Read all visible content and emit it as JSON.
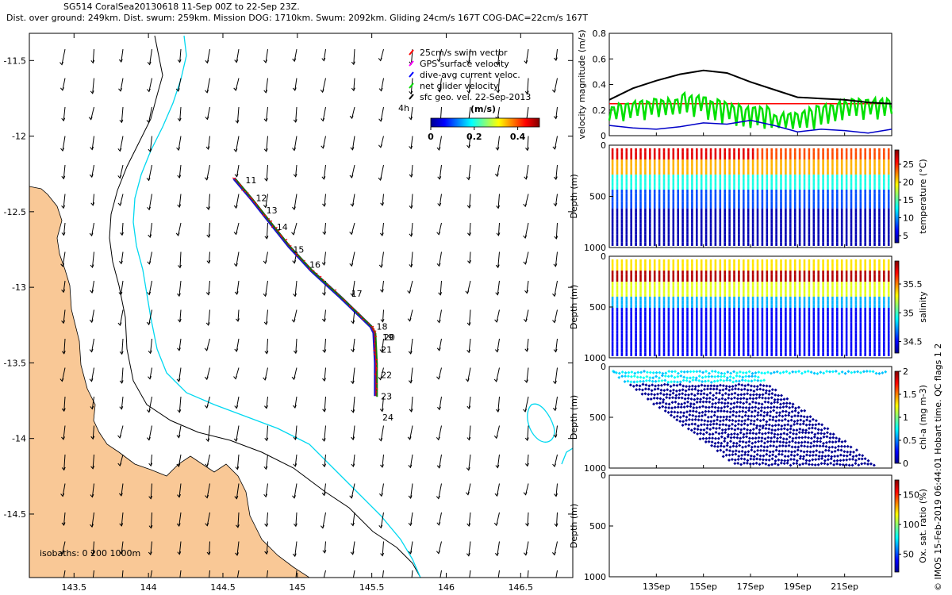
{
  "header": {
    "line1": "SG514 CoralSea20130618 11-Sep 00Z to 22-Sep 23Z.",
    "line2": "Dist. over ground: 249km. Dist. swum: 259km. Mission DOG: 1710km. Swum: 2092km. Gliding 24cm/s 167T COG-DAC=22cm/s 167T"
  },
  "map": {
    "x_ticks": [
      "143.5",
      "144",
      "144.5",
      "145",
      "145.5",
      "146",
      "146.5"
    ],
    "x_values": [
      143.5,
      144,
      144.5,
      145,
      145.5,
      146,
      146.5
    ],
    "y_ticks": [
      "-11.5",
      "-12",
      "-12.5",
      "-13",
      "-13.5",
      "-14",
      "-14.5"
    ],
    "y_values": [
      -11.5,
      -12,
      -12.5,
      -13,
      -13.5,
      -14,
      -14.5
    ],
    "xlim": [
      143.2,
      146.85
    ],
    "ylim": [
      -14.92,
      -11.32
    ],
    "isobath_label": "isobaths: 0   200  1000m",
    "land_color": "#f9c896",
    "isobath_200_color": "#000000",
    "isobath_1000_color": "#00d8f0",
    "track_colors": [
      "#0000c8",
      "#ff0000",
      "#008000"
    ],
    "day_labels": [
      {
        "t": "11",
        "lon": 144.63,
        "lat": -12.29
      },
      {
        "t": "12",
        "lon": 144.7,
        "lat": -12.41
      },
      {
        "t": "13",
        "lon": 144.77,
        "lat": -12.49
      },
      {
        "t": "14",
        "lon": 144.84,
        "lat": -12.6
      },
      {
        "t": "15",
        "lon": 144.95,
        "lat": -12.75
      },
      {
        "t": "16",
        "lon": 145.06,
        "lat": -12.85
      },
      {
        "t": "17",
        "lon": 145.34,
        "lat": -13.04
      },
      {
        "t": "18",
        "lon": 145.51,
        "lat": -13.26
      },
      {
        "t": "19",
        "lon": 145.55,
        "lat": -13.33
      },
      {
        "t": "20",
        "lon": 145.56,
        "lat": -13.33
      },
      {
        "t": "21",
        "lon": 145.54,
        "lat": -13.41
      },
      {
        "t": "22",
        "lon": 145.54,
        "lat": -13.58
      },
      {
        "t": "23",
        "lon": 145.54,
        "lat": -13.72
      },
      {
        "t": "24",
        "lon": 145.55,
        "lat": -13.86
      }
    ],
    "legend": {
      "items": [
        {
          "label": "25cm/s swim vector",
          "color": "#ff0000"
        },
        {
          "label": "GPS surface velocity",
          "color": "#ff00ff"
        },
        {
          "label": "dive-avg current veloc.",
          "color": "#0000ff"
        },
        {
          "label": "net glider velocity",
          "color": "#00e000"
        },
        {
          "label": "sfc geo. vel. 22-Sep-2013",
          "color": "#000000"
        }
      ],
      "hour_label": "4h",
      "colorbar_title": "(m/s)",
      "colorbar_ticks": [
        "0",
        "0.2",
        "0.4"
      ],
      "colorbar_tick_values": [
        0,
        0.2,
        0.4
      ],
      "colorbar_range": [
        0,
        0.5
      ]
    }
  },
  "velocity": {
    "ylabel": "velocity magnitude (m/s)",
    "y_ticks": [
      "0",
      "0.2",
      "0.4",
      "0.6",
      "0.8"
    ],
    "y_values": [
      0,
      0.2,
      0.4,
      0.6,
      0.8
    ],
    "ylim": [
      0,
      0.8
    ],
    "swim_speed": 0.25,
    "series": [
      {
        "color": "#000000",
        "x": [
          0,
          1,
          2,
          3,
          4,
          5,
          6,
          7,
          8,
          9,
          10,
          11,
          12
        ],
        "y": [
          0.28,
          0.37,
          0.43,
          0.48,
          0.51,
          0.49,
          0.42,
          0.36,
          0.3,
          0.29,
          0.28,
          0.26,
          0.25
        ]
      },
      {
        "color": "#0000c8",
        "x": [
          0,
          1,
          2,
          3,
          4,
          5,
          6,
          7,
          8,
          9,
          10,
          11,
          12
        ],
        "y": [
          0.08,
          0.06,
          0.05,
          0.07,
          0.1,
          0.09,
          0.12,
          0.08,
          0.03,
          0.05,
          0.04,
          0.02,
          0.05
        ]
      }
    ]
  },
  "panels": [
    {
      "name": "temperature",
      "cbar_label": "temperature (°C)",
      "cbar_ticks": [
        "5",
        "10",
        "15",
        "20",
        "25"
      ],
      "cbar_tick_values": [
        5,
        10,
        15,
        20,
        25
      ],
      "range": [
        3,
        29
      ]
    },
    {
      "name": "salinity",
      "cbar_label": "salinity",
      "cbar_ticks": [
        "34.5",
        "35",
        "35.5"
      ],
      "cbar_tick_values": [
        34.5,
        35,
        35.5
      ],
      "range": [
        34.3,
        35.9
      ]
    },
    {
      "name": "chla",
      "cbar_label": "chl-a (mg m-3)",
      "cbar_ticks": [
        "0",
        "0.5",
        "1",
        "1.5",
        "2"
      ],
      "cbar_tick_values": [
        0,
        0.5,
        1,
        1.5,
        2
      ],
      "range": [
        0,
        2
      ]
    },
    {
      "name": "oxygen",
      "cbar_label": "Ox. sat. ratio (%)",
      "cbar_ticks": [
        "50",
        "100",
        "150"
      ],
      "cbar_tick_values": [
        50,
        100,
        150
      ],
      "range": [
        20,
        175
      ]
    }
  ],
  "depth_axis": {
    "ylabel": "Depth (m)",
    "ticks": [
      "0",
      "500",
      "1000"
    ],
    "values": [
      0,
      500,
      1000
    ]
  },
  "time_axis": {
    "ticks": [
      "13Sep",
      "15Sep",
      "17Sep",
      "19Sep",
      "21Sep"
    ],
    "values": [
      2,
      4,
      6,
      8,
      10
    ],
    "xlim": [
      0,
      12
    ]
  },
  "credit": "© IMOS 15-Feb-2019 06:44:01 Hobart time. QC flags 1  2"
}
